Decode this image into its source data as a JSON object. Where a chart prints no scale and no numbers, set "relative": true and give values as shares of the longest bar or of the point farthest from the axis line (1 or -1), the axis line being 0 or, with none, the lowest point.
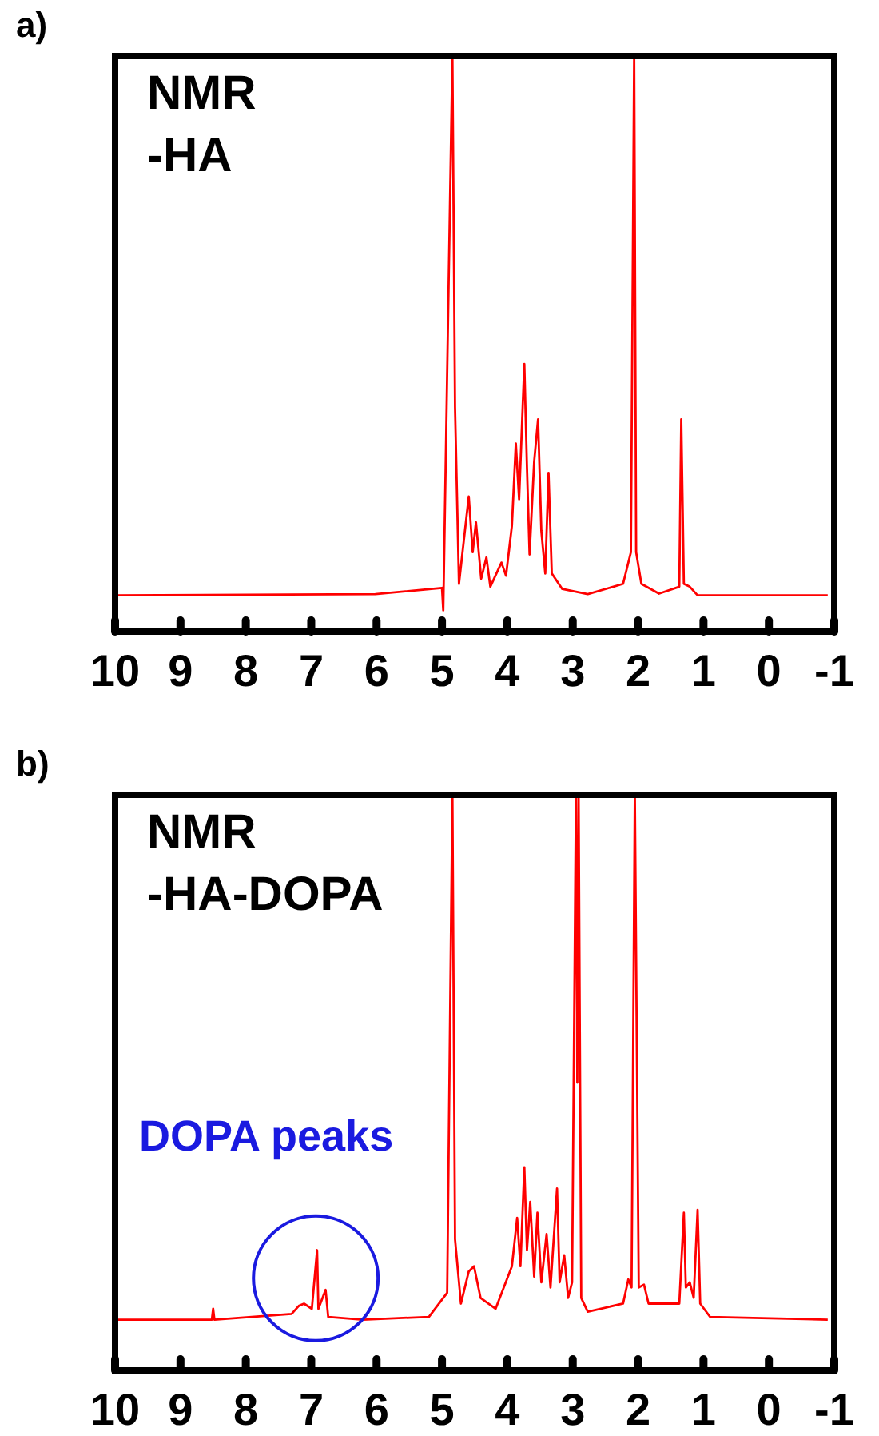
{
  "chart_data": [
    {
      "type": "line",
      "title": "a)",
      "relative": true,
      "xlim": [
        10,
        -1
      ],
      "xticks": [
        10,
        9,
        8,
        7,
        6,
        5,
        4,
        3,
        2,
        1,
        0,
        -1
      ],
      "annotations": [
        "NMR",
        "-HA"
      ],
      "x": [
        10,
        6.02,
        5.0,
        4.98,
        4.84,
        4.8,
        4.74,
        4.59,
        4.53,
        4.48,
        4.4,
        4.32,
        4.26,
        4.09,
        4.02,
        3.93,
        3.87,
        3.82,
        3.74,
        3.7,
        3.66,
        3.59,
        3.53,
        3.48,
        3.42,
        3.37,
        3.32,
        3.16,
        2.77,
        2.23,
        2.11,
        2.06,
        2.03,
        1.95,
        1.68,
        1.37,
        1.34,
        1.3,
        1.21,
        1.09,
        -0.9
      ],
      "series": [
        {
          "color": "#ff0000",
          "values": [
            0.063,
            0.065,
            0.076,
            0.037,
            1,
            0.39,
            0.083,
            0.235,
            0.138,
            0.19,
            0.092,
            0.129,
            0.078,
            0.12,
            0.097,
            0.184,
            0.327,
            0.23,
            0.465,
            0.286,
            0.134,
            0.295,
            0.369,
            0.175,
            0.101,
            0.276,
            0.101,
            0.074,
            0.065,
            0.083,
            0.138,
            1,
            0.138,
            0.083,
            0.066,
            0.078,
            0.369,
            0.083,
            0.078,
            0.063,
            0.063
          ]
        }
      ]
    },
    {
      "type": "line",
      "title": "b)",
      "relative": true,
      "xlim": [
        10,
        -1
      ],
      "xticks": [
        10,
        9,
        8,
        7,
        6,
        5,
        4,
        3,
        2,
        1,
        0,
        -1
      ],
      "annotations": [
        "NMR",
        "-HA-DOPA",
        {
          "text": "DOPA peaks",
          "x": 6.93,
          "y": 0.16
        }
      ],
      "x": [
        10,
        8.52,
        8.5,
        8.48,
        7.3,
        7.19,
        7.11,
        6.99,
        6.91,
        6.89,
        6.78,
        6.74,
        6.21,
        5.2,
        4.92,
        4.84,
        4.8,
        4.71,
        4.59,
        4.51,
        4.41,
        4.18,
        3.93,
        3.85,
        3.8,
        3.74,
        3.7,
        3.65,
        3.59,
        3.54,
        3.48,
        3.4,
        3.34,
        3.24,
        3.2,
        3.13,
        3.07,
        3.01,
        2.95,
        2.93,
        2.91,
        2.87,
        2.77,
        2.23,
        2.15,
        2.1,
        2.05,
        1.99,
        1.91,
        1.84,
        1.37,
        1.3,
        1.27,
        1.21,
        1.15,
        1.09,
        1.05,
        0.9,
        -0.9
      ],
      "series": [
        {
          "color": "#ff0000",
          "values": [
            0.088,
            0.088,
            0.107,
            0.088,
            0.098,
            0.112,
            0.116,
            0.107,
            0.209,
            0.107,
            0.14,
            0.093,
            0.088,
            0.093,
            0.135,
            1,
            0.228,
            0.116,
            0.172,
            0.181,
            0.126,
            0.107,
            0.181,
            0.265,
            0.181,
            0.353,
            0.209,
            0.293,
            0.163,
            0.274,
            0.153,
            0.237,
            0.144,
            0.316,
            0.153,
            0.2,
            0.126,
            0.153,
            1,
            0.5,
            1,
            0.126,
            0.102,
            0.116,
            0.158,
            0.144,
            1,
            0.144,
            0.149,
            0.116,
            0.116,
            0.274,
            0.144,
            0.153,
            0.126,
            0.279,
            0.116,
            0.093,
            0.088
          ]
        }
      ]
    }
  ]
}
